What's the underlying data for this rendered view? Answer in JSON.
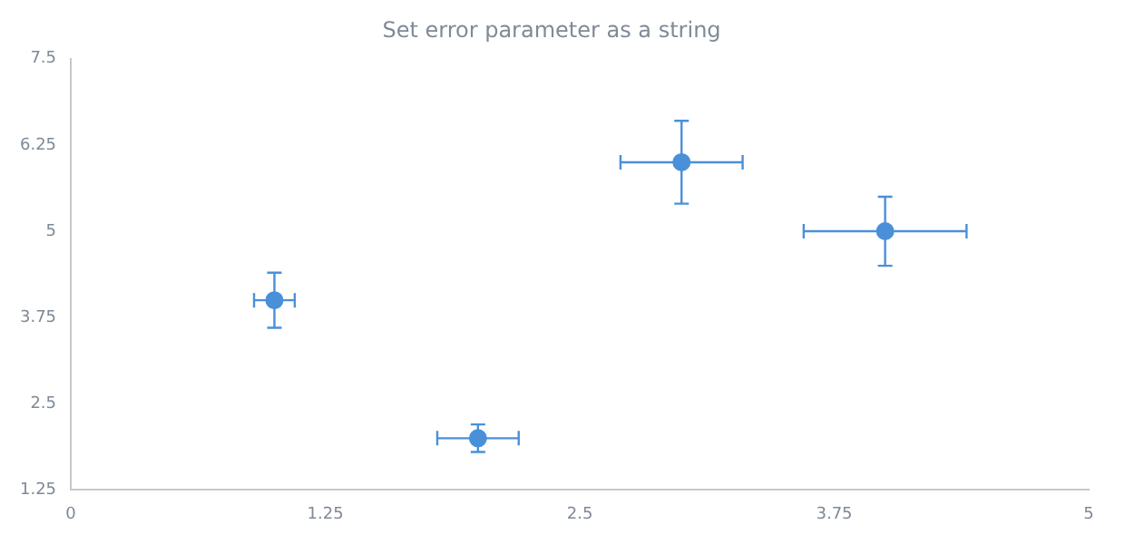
{
  "chart_data": {
    "type": "scatter",
    "title": "Set error parameter as a string",
    "x": [
      1,
      2,
      3,
      4
    ],
    "values": [
      4,
      2,
      6,
      5
    ],
    "errors": [
      0.4,
      0.2,
      0.6,
      0.5
    ],
    "xerrors": [
      0.1,
      0.2,
      0.3,
      0.4
    ],
    "color": "#4a90d9",
    "marker": "circle",
    "xlim": [
      0,
      5
    ],
    "xticks": [
      0,
      1.25,
      2.5,
      3.75,
      5
    ],
    "ylim": [
      1.25,
      7.5
    ],
    "yticks": [
      1.25,
      2.5,
      3.75,
      5,
      6.25,
      7.5
    ],
    "grid": false,
    "legend": false
  }
}
